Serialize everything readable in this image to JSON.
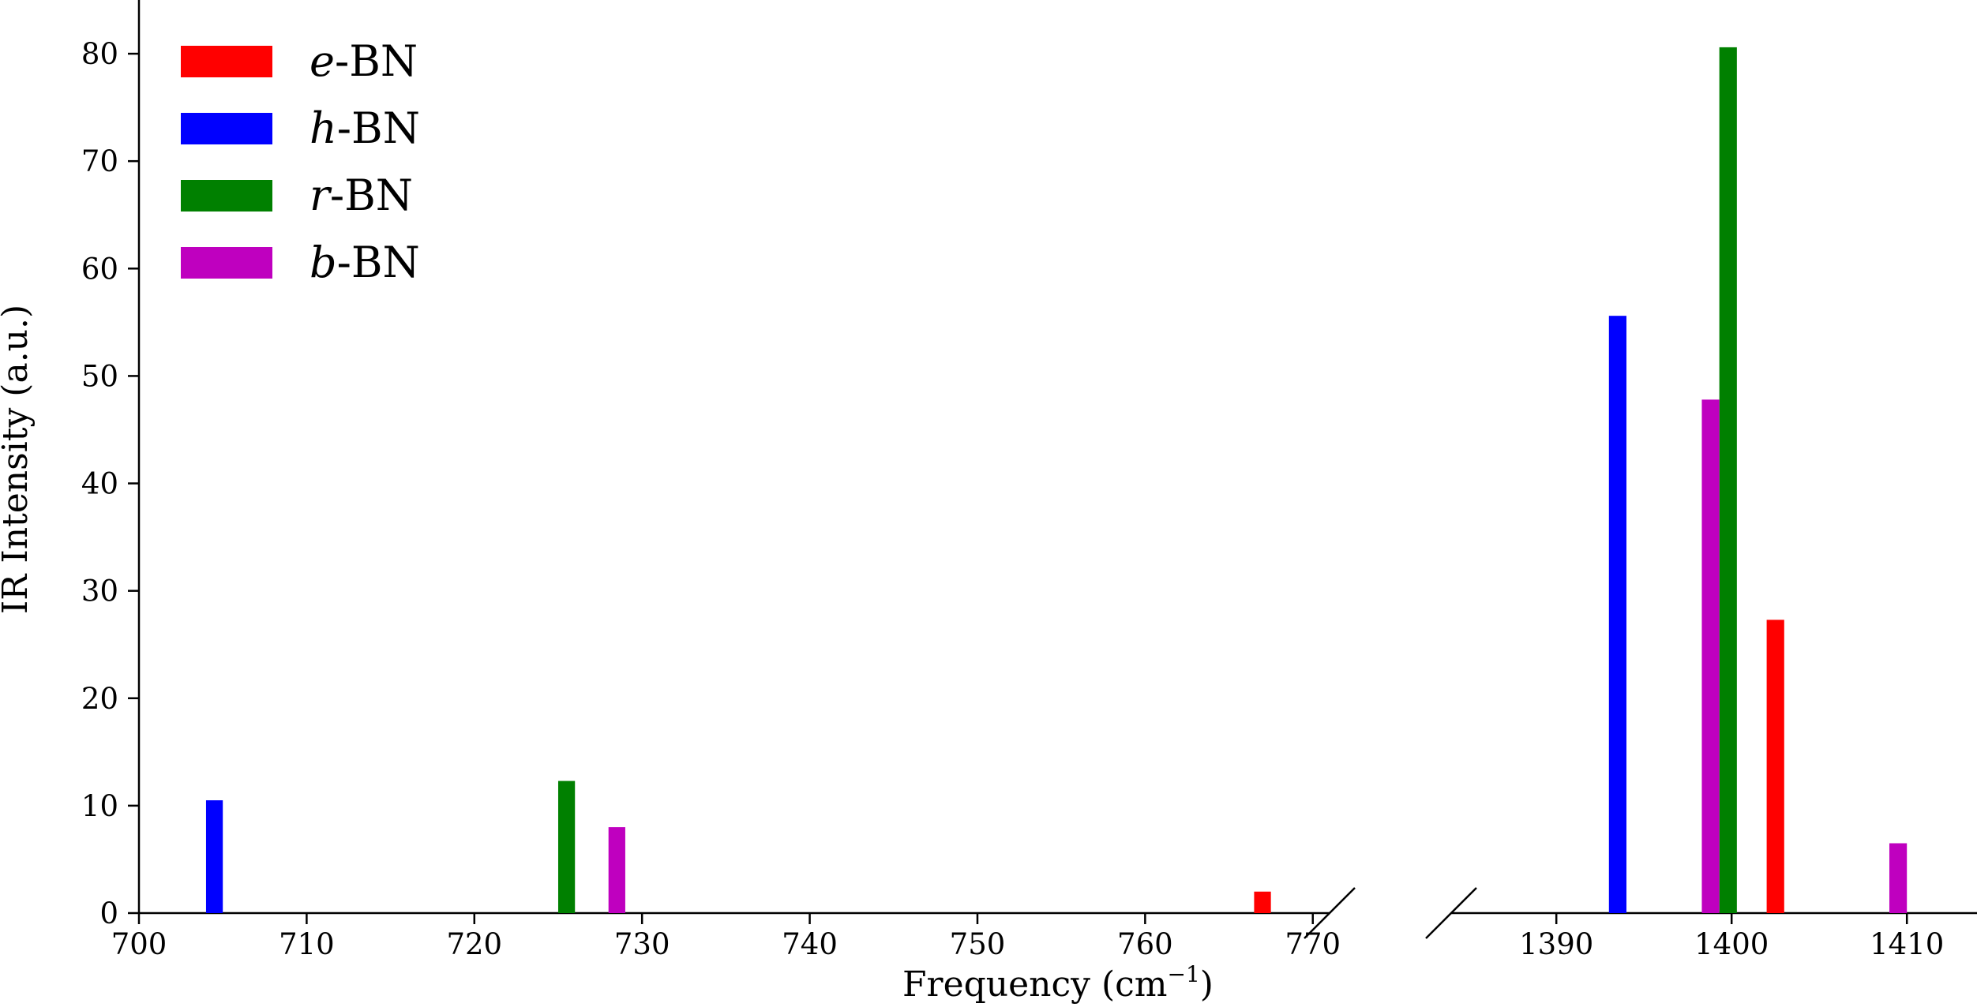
{
  "chart_data": {
    "type": "bar",
    "title": "",
    "xlabel": "Frequency (cm",
    "xlabel_sup": "−1",
    "xlabel_close": ")",
    "ylabel": "IR Intensity (a.u.)",
    "ylim": [
      0,
      85
    ],
    "yticks": [
      "0",
      "10",
      "20",
      "30",
      "40",
      "50",
      "60",
      "70",
      "80"
    ],
    "broken_x_axis": true,
    "panels": [
      {
        "xlim": [
          700,
          771
        ],
        "xticks": [
          "700",
          "710",
          "720",
          "730",
          "740",
          "750",
          "760",
          "770"
        ]
      },
      {
        "xlim": [
          1384,
          1414
        ],
        "xticks": [
          "1390",
          "1400",
          "1410"
        ]
      }
    ],
    "bar_width": 1.0,
    "legend_position": "top-left",
    "series": [
      {
        "name": "-BN",
        "prefix": "e",
        "color": "#ff0000",
        "points": [
          {
            "x": 767.0,
            "y": 2.0
          },
          {
            "x": 1402.5,
            "y": 27.3
          }
        ]
      },
      {
        "name": "-BN",
        "prefix": "h",
        "color": "#0000ff",
        "points": [
          {
            "x": 704.5,
            "y": 10.5
          },
          {
            "x": 1393.5,
            "y": 55.6
          }
        ]
      },
      {
        "name": "-BN",
        "prefix": "r",
        "color": "#008000",
        "points": [
          {
            "x": 725.5,
            "y": 12.3
          },
          {
            "x": 1399.8,
            "y": 80.6
          }
        ]
      },
      {
        "name": "-BN",
        "prefix": "b",
        "color": "#bf00bf",
        "points": [
          {
            "x": 728.5,
            "y": 8.0
          },
          {
            "x": 1398.8,
            "y": 47.8
          },
          {
            "x": 1409.5,
            "y": 6.5
          }
        ]
      }
    ]
  }
}
